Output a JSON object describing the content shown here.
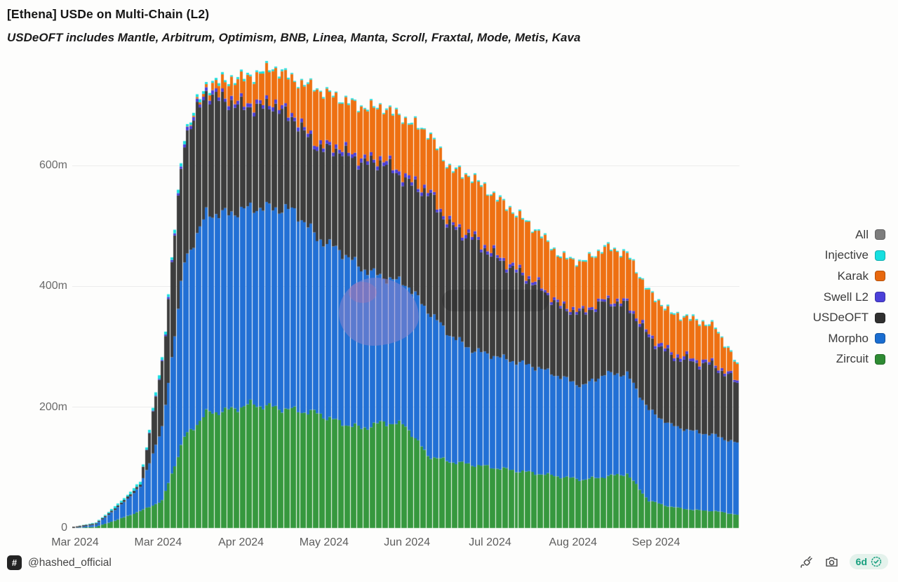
{
  "header": {
    "title": "[Ethena] USDe on Multi-Chain (L2)",
    "subtitle": "USDeOFT includes Mantle, Arbitrum, Optimism, BNB, Linea, Manta, Scroll, Fraxtal, Mode, Metis, Kava"
  },
  "legend": [
    {
      "label": "All",
      "color": "#7d7d7d"
    },
    {
      "label": "Injective",
      "color": "#17dfe0"
    },
    {
      "label": "Karak",
      "color": "#e8680e"
    },
    {
      "label": "Swell L2",
      "color": "#4b40d9"
    },
    {
      "label": "USDeOFT",
      "color": "#303030"
    },
    {
      "label": "Morpho",
      "color": "#1a6dd0"
    },
    {
      "label": "Zircuit",
      "color": "#2e8b33"
    }
  ],
  "footer": {
    "hash_glyph": "#",
    "author": "@hashed_official",
    "age_badge": "6d",
    "icons": [
      "plug-icon",
      "camera-icon",
      "verified-badge-icon"
    ]
  },
  "chart_data": {
    "type": "bar",
    "stacked": true,
    "title": "[Ethena] USDe on Multi-Chain (L2)",
    "unit": "USDe supply (millions)",
    "grid": "horizontal",
    "legend_position": "right",
    "bar_interval": "daily",
    "sample_interval_days": 7,
    "x_tick_labels": [
      "Mar 2024",
      "Mar 2024",
      "Apr 2024",
      "May 2024",
      "Jun 2024",
      "Jul 2024",
      "Aug 2024",
      "Sep 2024"
    ],
    "y_tick_values": [
      0,
      200,
      400,
      600
    ],
    "y_tick_labels": [
      "0",
      "200m",
      "400m",
      "600m"
    ],
    "ylim": [
      0,
      775
    ],
    "x_keypoints": [
      "Feb 26",
      "Mar 4",
      "Mar 11",
      "Mar 18",
      "Mar 25",
      "Apr 1",
      "Apr 8",
      "Apr 15",
      "Apr 22",
      "Apr 29",
      "May 6",
      "May 13",
      "May 20",
      "May 27",
      "Jun 3",
      "Jun 10",
      "Jun 17",
      "Jun 24",
      "Jul 1",
      "Jul 8",
      "Jul 15",
      "Jul 22",
      "Jul 29",
      "Aug 5",
      "Aug 12",
      "Aug 19",
      "Aug 26",
      "Sep 2",
      "Sep 9",
      "Sep 16",
      "Sep 23"
    ],
    "series": [
      {
        "name": "Zircuit",
        "color": "#36983e",
        "values": [
          0,
          2,
          14,
          28,
          45,
          150,
          190,
          195,
          205,
          200,
          195,
          190,
          175,
          165,
          175,
          170,
          120,
          110,
          105,
          100,
          95,
          90,
          85,
          80,
          85,
          90,
          45,
          35,
          30,
          28,
          22
        ]
      },
      {
        "name": "Morpho",
        "color": "#2270d5",
        "values": [
          0,
          4,
          20,
          40,
          120,
          290,
          330,
          325,
          325,
          330,
          330,
          290,
          285,
          265,
          240,
          235,
          240,
          210,
          190,
          185,
          180,
          175,
          165,
          155,
          170,
          165,
          150,
          135,
          130,
          125,
          118
        ]
      },
      {
        "name": "USDeOFT",
        "color": "#3d3d3d",
        "values": [
          2,
          2,
          3,
          4,
          110,
          205,
          200,
          185,
          165,
          170,
          150,
          150,
          165,
          175,
          190,
          170,
          195,
          180,
          185,
          165,
          150,
          135,
          115,
          120,
          120,
          115,
          120,
          115,
          115,
          115,
          100
        ]
      },
      {
        "name": "Swell L2",
        "color": "#4b40d9",
        "values": [
          0,
          0,
          0,
          0,
          2,
          5,
          6,
          6,
          6,
          6,
          6,
          6,
          6,
          6,
          6,
          6,
          5,
          5,
          5,
          5,
          5,
          4,
          4,
          4,
          4,
          4,
          5,
          5,
          5,
          4,
          4
        ]
      },
      {
        "name": "Karak",
        "color": "#ee7012",
        "values": [
          0,
          0,
          0,
          0,
          0,
          0,
          5,
          30,
          45,
          55,
          60,
          90,
          80,
          85,
          85,
          95,
          95,
          90,
          95,
          95,
          90,
          85,
          80,
          80,
          85,
          80,
          70,
          65,
          65,
          60,
          25
        ]
      },
      {
        "name": "Injective",
        "color": "#17dfe0",
        "values": [
          0,
          1,
          3,
          4,
          5,
          5,
          4,
          3,
          3,
          3,
          2,
          2,
          2,
          2,
          2,
          2,
          2,
          2,
          2,
          2,
          2,
          2,
          2,
          2,
          2,
          2,
          2,
          2,
          2,
          2,
          2
        ]
      }
    ]
  }
}
